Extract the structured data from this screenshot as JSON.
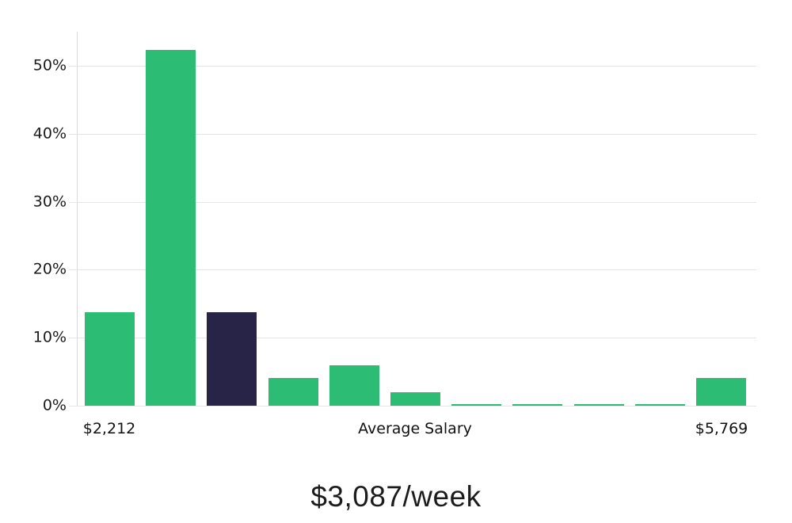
{
  "chart_data": {
    "type": "bar",
    "title": "$3,087/week",
    "x_axis_label": "Average Salary",
    "x_tick_labels": {
      "min": "$2,212",
      "max": "$5,769"
    },
    "y_ticks": [
      {
        "label": "0%",
        "value": 0
      },
      {
        "label": "10%",
        "value": 10
      },
      {
        "label": "20%",
        "value": 20
      },
      {
        "label": "30%",
        "value": 30
      },
      {
        "label": "40%",
        "value": 40
      },
      {
        "label": "50%",
        "value": 50
      }
    ],
    "ylim": [
      0,
      55
    ],
    "values": [
      13.7,
      52.3,
      13.7,
      4.1,
      5.9,
      2.0,
      0.2,
      0.2,
      0.2,
      0.2,
      4.1
    ],
    "highlighted_bar_index": 2,
    "grid": true,
    "legend": false,
    "colors": {
      "bar": "#2dbc74",
      "highlighted_bar": "#282447",
      "gridline": "#e5e5e5",
      "axis_line": "#d9d9d9",
      "tick_text": "#1a1a1a",
      "title_text": "#1c1c1c",
      "background": "#ffffff"
    }
  }
}
